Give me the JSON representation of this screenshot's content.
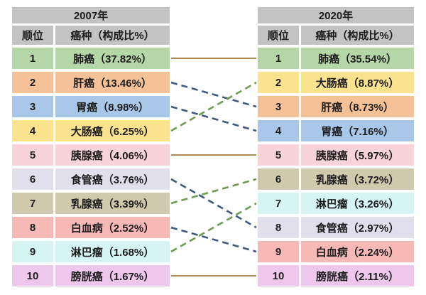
{
  "figure": {
    "header_bg": "#c3c3c3",
    "text_color": "#1c1c1c"
  },
  "tables": [
    {
      "year": "2007年",
      "col_rank": "顺位",
      "col_cancer": "癌种（构成比%）",
      "rows": [
        {
          "rank": "1",
          "label": "肺癌（37.82%）",
          "color": "#b5d7a8"
        },
        {
          "rank": "2",
          "label": "肝癌（13.46%）",
          "color": "#f4c296"
        },
        {
          "rank": "3",
          "label": "胃癌（8.98%）",
          "color": "#a9c7e8"
        },
        {
          "rank": "4",
          "label": "大肠癌（6.25%）",
          "color": "#fbe28e"
        },
        {
          "rank": "5",
          "label": "胰腺癌（4.06%）",
          "color": "#f9d3da"
        },
        {
          "rank": "6",
          "label": "食管癌（3.76%）",
          "color": "#e0dfeb"
        },
        {
          "rank": "7",
          "label": "乳腺癌（3.39%）",
          "color": "#cfc9ae"
        },
        {
          "rank": "8",
          "label": "白血病（2.52%）",
          "color": "#f7b9b6"
        },
        {
          "rank": "9",
          "label": "淋巴瘤（1.68%）",
          "color": "#d6f4f2"
        },
        {
          "rank": "10",
          "label": "膀胱癌（1.67%）",
          "color": "#eec7ed"
        }
      ]
    },
    {
      "year": "2020年",
      "col_rank": "顺位",
      "col_cancer": "癌种（构成比%）",
      "rows": [
        {
          "rank": "1",
          "label": "肺癌（35.54%）",
          "color": "#b5d7a8"
        },
        {
          "rank": "2",
          "label": "大肠癌（8.87%）",
          "color": "#fbe28e"
        },
        {
          "rank": "3",
          "label": "肝癌（8.73%）",
          "color": "#f4c296"
        },
        {
          "rank": "4",
          "label": "胃癌（7.16%）",
          "color": "#a9c7e8"
        },
        {
          "rank": "5",
          "label": "胰腺癌（5.97%）",
          "color": "#f9d3da"
        },
        {
          "rank": "6",
          "label": "乳腺癌（3.72%）",
          "color": "#cfc9ae"
        },
        {
          "rank": "7",
          "label": "淋巴瘤（3.26%）",
          "color": "#d6f4f2"
        },
        {
          "rank": "8",
          "label": "食管癌（2.97%）",
          "color": "#e0dfeb"
        },
        {
          "rank": "9",
          "label": "白血病（2.24%）",
          "color": "#f7b9b6"
        },
        {
          "rank": "10",
          "label": "膀胱癌（2.11%）",
          "color": "#eec7ed"
        }
      ]
    }
  ],
  "chart_data": {
    "type": "table",
    "columns": [
      "顺位",
      "癌种（构成比%）"
    ],
    "series": [
      {
        "name": "2007年",
        "ranking": [
          {
            "rank": 1,
            "cancer": "肺癌",
            "percent": 37.82
          },
          {
            "rank": 2,
            "cancer": "肝癌",
            "percent": 13.46
          },
          {
            "rank": 3,
            "cancer": "胃癌",
            "percent": 8.98
          },
          {
            "rank": 4,
            "cancer": "大肠癌",
            "percent": 6.25
          },
          {
            "rank": 5,
            "cancer": "胰腺癌",
            "percent": 4.06
          },
          {
            "rank": 6,
            "cancer": "食管癌",
            "percent": 3.76
          },
          {
            "rank": 7,
            "cancer": "乳腺癌",
            "percent": 3.39
          },
          {
            "rank": 8,
            "cancer": "白血病",
            "percent": 2.52
          },
          {
            "rank": 9,
            "cancer": "淋巴瘤",
            "percent": 1.68
          },
          {
            "rank": 10,
            "cancer": "膀胱癌",
            "percent": 1.67
          }
        ]
      },
      {
        "name": "2020年",
        "ranking": [
          {
            "rank": 1,
            "cancer": "肺癌",
            "percent": 35.54
          },
          {
            "rank": 2,
            "cancer": "大肠癌",
            "percent": 8.87
          },
          {
            "rank": 3,
            "cancer": "肝癌",
            "percent": 8.73
          },
          {
            "rank": 4,
            "cancer": "胃癌",
            "percent": 7.16
          },
          {
            "rank": 5,
            "cancer": "胰腺癌",
            "percent": 5.97
          },
          {
            "rank": 6,
            "cancer": "乳腺癌",
            "percent": 3.72
          },
          {
            "rank": 7,
            "cancer": "淋巴瘤",
            "percent": 3.26
          },
          {
            "rank": 8,
            "cancer": "食管癌",
            "percent": 2.97
          },
          {
            "rank": 9,
            "cancer": "白血病",
            "percent": 2.24
          },
          {
            "rank": 10,
            "cancer": "膀胱癌",
            "percent": 2.11
          }
        ]
      }
    ],
    "links": [
      {
        "cancer": "肺癌",
        "from_rank": 1,
        "to_rank": 1,
        "line": "solid",
        "color": "#ad8a58"
      },
      {
        "cancer": "肝癌",
        "from_rank": 2,
        "to_rank": 3,
        "line": "dashed",
        "color": "#3e5a7e"
      },
      {
        "cancer": "胃癌",
        "from_rank": 3,
        "to_rank": 4,
        "line": "dashed",
        "color": "#3e5a7e"
      },
      {
        "cancer": "大肠癌",
        "from_rank": 4,
        "to_rank": 2,
        "line": "dashed",
        "color": "#6e9b52"
      },
      {
        "cancer": "胰腺癌",
        "from_rank": 5,
        "to_rank": 5,
        "line": "solid",
        "color": "#ad8a58"
      },
      {
        "cancer": "食管癌",
        "from_rank": 6,
        "to_rank": 8,
        "line": "dashed",
        "color": "#3e5a7e"
      },
      {
        "cancer": "乳腺癌",
        "from_rank": 7,
        "to_rank": 6,
        "line": "dashed",
        "color": "#6e9b52"
      },
      {
        "cancer": "白血病",
        "from_rank": 8,
        "to_rank": 9,
        "line": "dashed",
        "color": "#3e5a7e"
      },
      {
        "cancer": "淋巴瘤",
        "from_rank": 9,
        "to_rank": 7,
        "line": "dashed",
        "color": "#6e9b52"
      },
      {
        "cancer": "膀胱癌",
        "from_rank": 10,
        "to_rank": 10,
        "line": "solid",
        "color": "#ad8a58"
      }
    ],
    "legend_position": "none",
    "grid": false
  }
}
